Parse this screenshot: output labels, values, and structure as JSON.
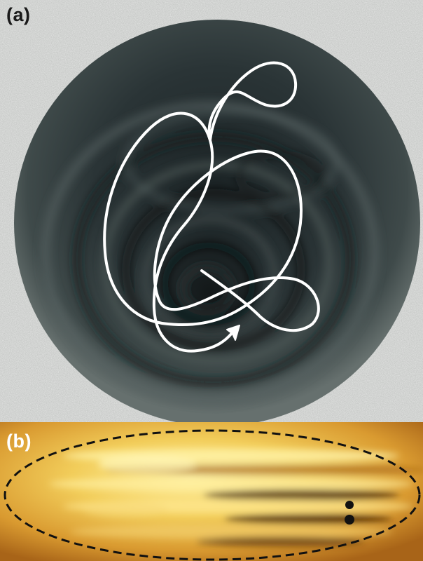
{
  "panels": [
    {
      "label": "(a)"
    },
    {
      "label": "(b)"
    }
  ],
  "colors": {
    "paper_background": "#c9cbc9",
    "disk_dark": "#1c2527",
    "disk_rim": "#5e6866",
    "trajectory": "#ffffff",
    "panel_b_glow": "#f6e07a",
    "panel_b_dark": "#6a3a0a",
    "ellipse_outline": "#111111",
    "droplets": "#111111"
  }
}
